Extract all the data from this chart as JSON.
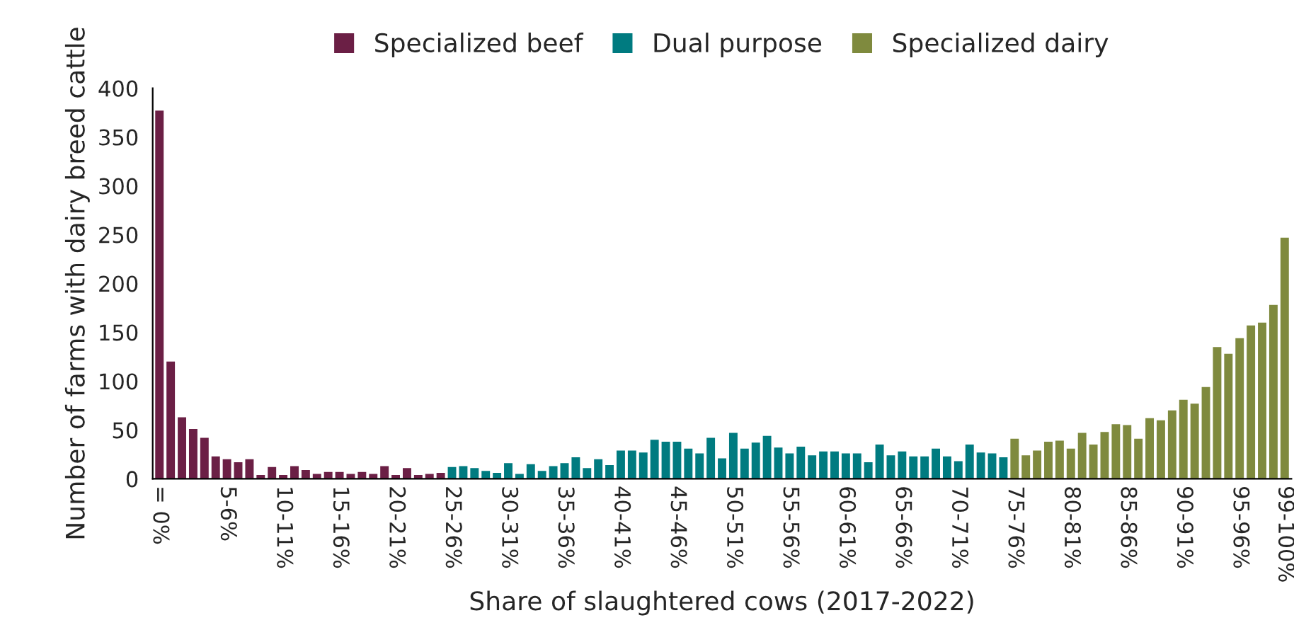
{
  "chart_data": {
    "type": "bar",
    "xlabel": "Share of slaughtered cows (2017-2022)",
    "ylabel": "Number of farms with dairy breed cattle",
    "categories": [
      "= 0%",
      null,
      null,
      null,
      null,
      null,
      "5-6%",
      null,
      null,
      null,
      null,
      "10-11%",
      null,
      null,
      null,
      null,
      "15-16%",
      null,
      null,
      null,
      null,
      "20-21%",
      null,
      null,
      null,
      null,
      "25-26%",
      null,
      null,
      null,
      null,
      "30-31%",
      null,
      null,
      null,
      null,
      "35-36%",
      null,
      null,
      null,
      null,
      "40-41%",
      null,
      null,
      null,
      null,
      "45-46%",
      null,
      null,
      null,
      null,
      "50-51%",
      null,
      null,
      null,
      null,
      "55-56%",
      null,
      null,
      null,
      null,
      "60-61%",
      null,
      null,
      null,
      null,
      "65-66%",
      null,
      null,
      null,
      null,
      "70-71%",
      null,
      null,
      null,
      null,
      "75-76%",
      null,
      null,
      null,
      null,
      "80-81%",
      null,
      null,
      null,
      null,
      "85-86%",
      null,
      null,
      null,
      null,
      "90-91%",
      null,
      null,
      null,
      null,
      "95-96%",
      null,
      null,
      null,
      "99-100%"
    ],
    "series": [
      {
        "name": "Specialized beef",
        "color": "#6b1f45",
        "values": [
          377,
          120,
          63,
          51,
          42,
          23,
          20,
          17,
          20,
          4,
          12,
          4,
          13,
          9,
          5,
          7,
          7,
          5,
          7,
          5,
          13,
          4,
          11,
          4,
          5,
          6,
          null,
          null,
          null,
          null,
          null,
          null,
          null,
          null,
          null,
          null,
          null,
          null,
          null,
          null,
          null,
          null,
          null,
          null,
          null,
          null,
          null,
          null,
          null,
          null,
          null,
          null,
          null,
          null,
          null,
          null,
          null,
          null,
          null,
          null,
          null,
          null,
          null,
          null,
          null,
          null,
          null,
          null,
          null,
          null,
          null,
          null,
          null,
          null,
          null,
          null,
          null,
          null,
          null,
          null,
          null,
          null,
          null,
          null,
          null,
          null,
          null,
          null,
          null,
          null,
          null,
          null,
          null,
          null,
          null,
          null,
          null,
          null,
          null,
          null,
          null
        ]
      },
      {
        "name": "Dual purpose",
        "color": "#007b80",
        "values": [
          null,
          null,
          null,
          null,
          null,
          null,
          null,
          null,
          null,
          null,
          null,
          null,
          null,
          null,
          null,
          null,
          null,
          null,
          null,
          null,
          null,
          null,
          null,
          null,
          null,
          null,
          12,
          13,
          11,
          8,
          6,
          16,
          5,
          15,
          8,
          13,
          16,
          22,
          11,
          20,
          14,
          29,
          29,
          27,
          40,
          38,
          38,
          31,
          26,
          42,
          21,
          47,
          31,
          37,
          44,
          32,
          26,
          33,
          24,
          28,
          28,
          26,
          26,
          17,
          35,
          24,
          28,
          23,
          23,
          31,
          23,
          18,
          35,
          27,
          26,
          22,
          null,
          null,
          null,
          null,
          null,
          null,
          null,
          null,
          null,
          null,
          null,
          null,
          null,
          null,
          null,
          null,
          null,
          null,
          null,
          null,
          null,
          null,
          null,
          null,
          null
        ]
      },
      {
        "name": "Specialized dairy",
        "color": "#7f8a3e",
        "values": [
          null,
          null,
          null,
          null,
          null,
          null,
          null,
          null,
          null,
          null,
          null,
          null,
          null,
          null,
          null,
          null,
          null,
          null,
          null,
          null,
          null,
          null,
          null,
          null,
          null,
          null,
          null,
          null,
          null,
          null,
          null,
          null,
          null,
          null,
          null,
          null,
          null,
          null,
          null,
          null,
          null,
          null,
          null,
          null,
          null,
          null,
          null,
          null,
          null,
          null,
          null,
          null,
          null,
          null,
          null,
          null,
          null,
          null,
          null,
          null,
          null,
          null,
          null,
          null,
          null,
          null,
          null,
          null,
          null,
          null,
          null,
          null,
          null,
          null,
          null,
          null,
          41,
          24,
          29,
          38,
          39,
          31,
          47,
          35,
          48,
          56,
          55,
          41,
          62,
          60,
          70,
          81,
          77,
          94,
          135,
          128,
          144,
          157,
          160,
          178,
          247
        ]
      }
    ],
    "ylim": [
      0,
      400
    ],
    "yticks": [
      0,
      50,
      100,
      150,
      200,
      250,
      300,
      350,
      400
    ],
    "grid": false,
    "legend": "top"
  }
}
